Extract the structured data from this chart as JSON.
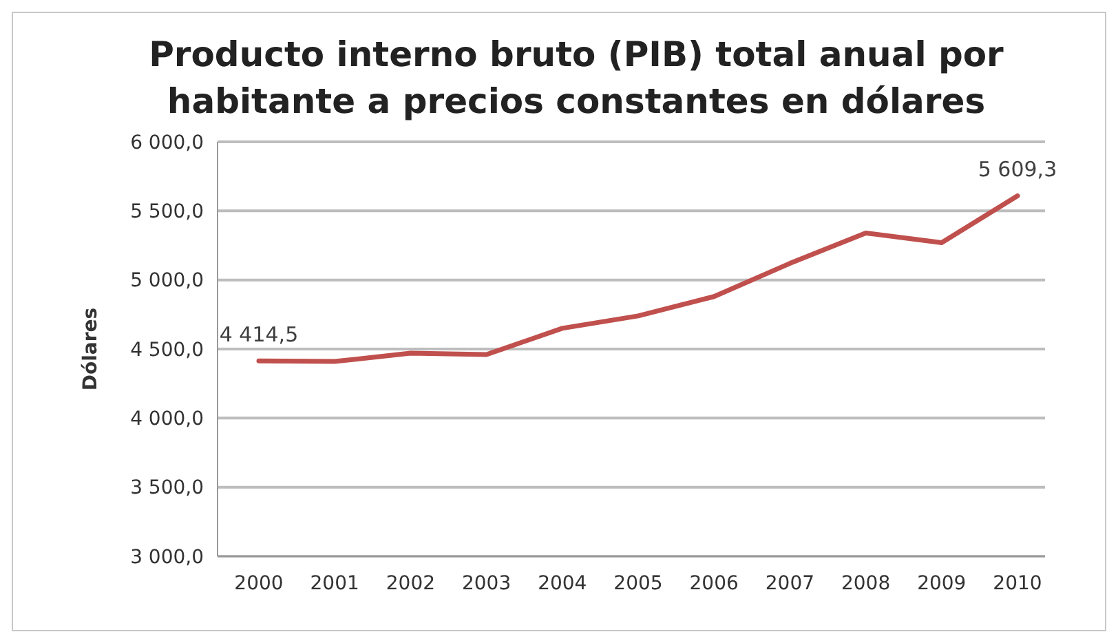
{
  "chart_data": {
    "type": "line",
    "title": "Producto interno bruto (PIB) total anual por\nhabitante a precios constantes en dólares",
    "ylabel": "Dólares",
    "categories": [
      "2000",
      "2001",
      "2002",
      "2003",
      "2004",
      "2005",
      "2006",
      "2007",
      "2008",
      "2009",
      "2010"
    ],
    "series": [
      {
        "color": "#c0504d",
        "values": [
          4414.5,
          4410,
          4470,
          4460,
          4650,
          4740,
          4880,
          5120,
          5340,
          5270,
          5609.3
        ],
        "value_labels": [
          "4 414,5",
          null,
          null,
          null,
          null,
          null,
          null,
          null,
          null,
          null,
          "5 609,3"
        ]
      }
    ],
    "ylim": [
      3000,
      6000
    ],
    "yticks": [
      {
        "value": 3000,
        "label": "3 000,0"
      },
      {
        "value": 3500,
        "label": "3 500,0"
      },
      {
        "value": 4000,
        "label": "4 000,0"
      },
      {
        "value": 4500,
        "label": "4 500,0"
      },
      {
        "value": 5000,
        "label": "5 000,0"
      },
      {
        "value": 5500,
        "label": "5 500,0"
      },
      {
        "value": 6000,
        "label": "6 000,0"
      }
    ],
    "grid": "y",
    "marker": "none",
    "line_style": "solid"
  }
}
